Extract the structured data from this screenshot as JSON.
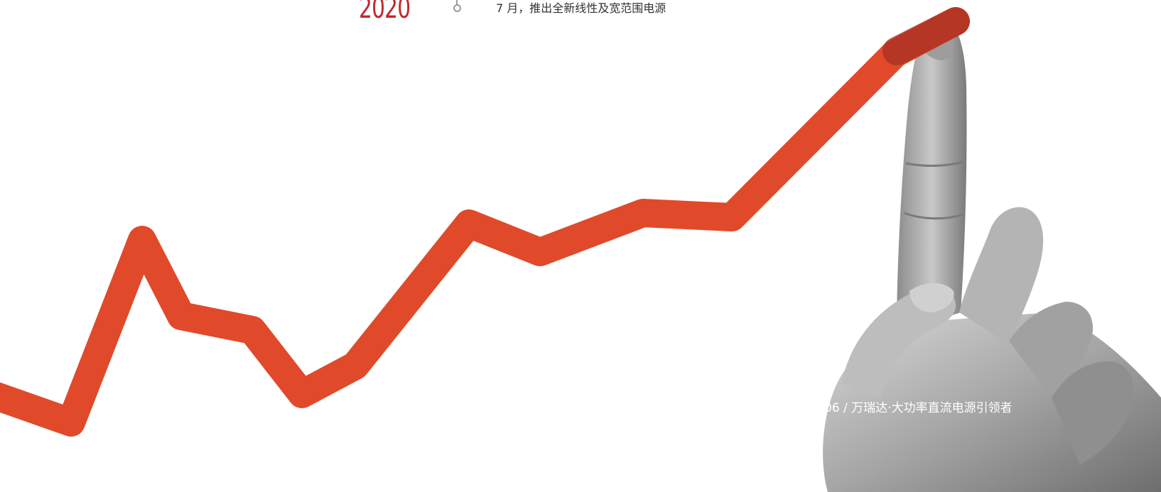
{
  "timeline": {
    "year": "2020",
    "event": "7 月，推出全新线性及宽范围电源"
  },
  "footer": {
    "text": "06 / 万瑞达·大功率直流电源引领者"
  },
  "colors": {
    "year": "#c1272d",
    "arrow": "#e04a2a"
  },
  "illustration": {
    "hand": "hand-pointing-up",
    "line": "rising-growth-line"
  }
}
